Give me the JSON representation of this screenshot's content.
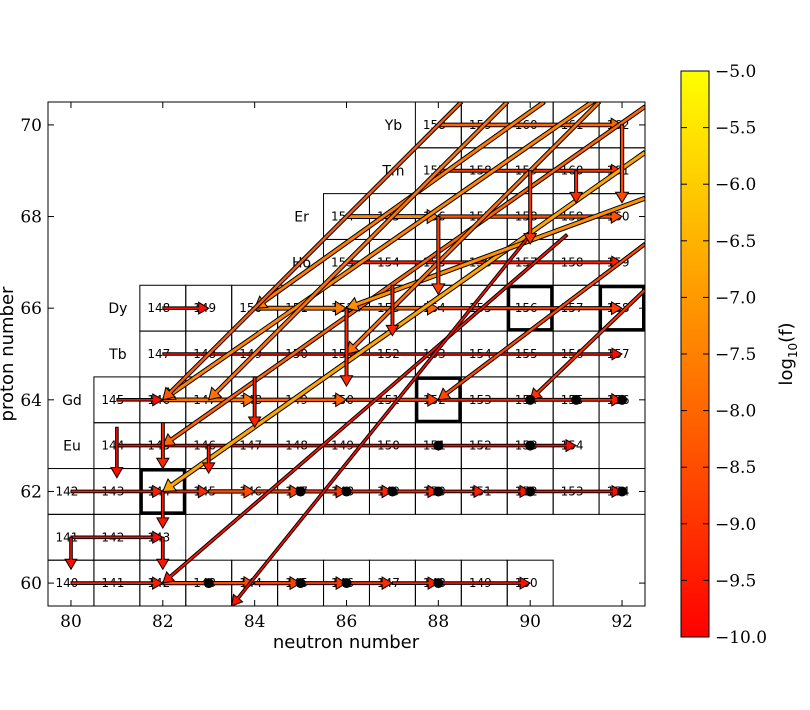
{
  "chart_data": {
    "type": "heatmap",
    "xlabel": "neutron number",
    "ylabel": "proton number",
    "xlim": [
      79.5,
      92.5
    ],
    "ylim": [
      59.5,
      70.5
    ],
    "xticks": [
      80,
      82,
      84,
      86,
      88,
      90,
      92
    ],
    "yticks": [
      60,
      62,
      64,
      66,
      68,
      70
    ],
    "elements": [
      {
        "label": "Yb",
        "z": 70
      },
      {
        "label": "Tm",
        "z": 69
      },
      {
        "label": "Er",
        "z": 68
      },
      {
        "label": "Ho",
        "z": 67
      },
      {
        "label": "Dy",
        "z": 66
      },
      {
        "label": "Tb",
        "z": 65
      },
      {
        "label": "Gd",
        "z": 64
      },
      {
        "label": "Eu",
        "z": 63
      }
    ],
    "nuclei_rows": [
      {
        "z": 70,
        "n_start": 88,
        "n_end": 92,
        "labels": [
          "158",
          "159",
          "160",
          "161",
          "162"
        ]
      },
      {
        "z": 69,
        "n_start": 88,
        "n_end": 92,
        "labels": [
          "157",
          "158",
          "159",
          "160",
          "161"
        ]
      },
      {
        "z": 68,
        "n_start": 86,
        "n_end": 92,
        "labels": [
          "154",
          "155",
          "156",
          "157",
          "158",
          "159",
          "160"
        ]
      },
      {
        "z": 67,
        "n_start": 86,
        "n_end": 92,
        "labels": [
          "153",
          "154",
          "155",
          "156",
          "157",
          "158",
          "159"
        ]
      },
      {
        "z": 66,
        "n_start": 82,
        "n_end": 92,
        "labels": [
          "148",
          "149",
          "150",
          "151",
          "152",
          "153",
          "154",
          "155",
          "156",
          "157",
          "158"
        ]
      },
      {
        "z": 65,
        "n_start": 82,
        "n_end": 92,
        "labels": [
          "147",
          "148",
          "149",
          "150",
          "151",
          "152",
          "153",
          "154",
          "155",
          "156",
          "157"
        ]
      },
      {
        "z": 64,
        "n_start": 81,
        "n_end": 92,
        "labels": [
          "145",
          "146",
          "147",
          "148",
          "149",
          "150",
          "151",
          "152",
          "153",
          "154",
          "155",
          "156"
        ]
      },
      {
        "z": 63,
        "n_start": 81,
        "n_end": 91,
        "labels": [
          "144",
          "145",
          "146",
          "147",
          "148",
          "149",
          "150",
          "151",
          "152",
          "153",
          "154"
        ]
      },
      {
        "z": 62,
        "n_start": 80,
        "n_end": 92,
        "labels": [
          "142",
          "143",
          "144",
          "145",
          "146",
          "147",
          "148",
          "149",
          "150",
          "151",
          "152",
          "153",
          "154"
        ]
      },
      {
        "z": 61,
        "n_start": 80,
        "n_end": 82,
        "labels": [
          "141",
          "142",
          "143"
        ]
      },
      {
        "z": 60,
        "n_start": 80,
        "n_end": 90,
        "labels": [
          "140",
          "141",
          "142",
          "143",
          "144",
          "145",
          "146",
          "147",
          "148",
          "149",
          "150"
        ]
      }
    ],
    "stable_nuclei": [
      {
        "n": 82,
        "z": 62
      },
      {
        "n": 88,
        "z": 64
      },
      {
        "n": 90,
        "z": 66
      },
      {
        "n": 92,
        "z": 66
      }
    ],
    "filled_markers": [
      {
        "n": 85,
        "z": 62
      },
      {
        "n": 86,
        "z": 62
      },
      {
        "n": 87,
        "z": 62
      },
      {
        "n": 88,
        "z": 62
      },
      {
        "n": 90,
        "z": 62
      },
      {
        "n": 92,
        "z": 62
      },
      {
        "n": 88,
        "z": 63
      },
      {
        "n": 90,
        "z": 63
      },
      {
        "n": 90,
        "z": 64
      },
      {
        "n": 91,
        "z": 64
      },
      {
        "n": 92,
        "z": 64
      },
      {
        "n": 83,
        "z": 60
      },
      {
        "n": 85,
        "z": 60
      },
      {
        "n": 86,
        "z": 60
      },
      {
        "n": 88,
        "z": 60
      }
    ],
    "colorbar": {
      "label": "log10(f)",
      "label_base": "log",
      "label_sub": "10",
      "label_arg": "(f)",
      "range": [
        -10.0,
        -5.0
      ],
      "ticks": [
        "−5.0",
        "−5.5",
        "−6.0",
        "−6.5",
        "−7.0",
        "−7.5",
        "−8.0",
        "−8.5",
        "−9.0",
        "−9.5",
        "−10.0"
      ],
      "tick_values": [
        -5.0,
        -5.5,
        -6.0,
        -6.5,
        -7.0,
        -7.5,
        -8.0,
        -8.5,
        -9.0,
        -9.5,
        -10.0
      ],
      "colors": [
        "#ff0000",
        "#ff8000",
        "#ffff00"
      ]
    },
    "flows": [
      {
        "from": [
          80,
          62
        ],
        "to": [
          82,
          62
        ],
        "f": -9.5
      },
      {
        "from": [
          82,
          62
        ],
        "to": [
          83,
          62
        ],
        "f": -9.2
      },
      {
        "from": [
          83,
          62
        ],
        "to": [
          84,
          62
        ],
        "f": -8.6
      },
      {
        "from": [
          84,
          62
        ],
        "to": [
          85,
          62
        ],
        "f": -8.8
      },
      {
        "from": [
          85,
          62
        ],
        "to": [
          86,
          62
        ],
        "f": -9.0
      },
      {
        "from": [
          86,
          62
        ],
        "to": [
          87,
          62
        ],
        "f": -9.2
      },
      {
        "from": [
          87,
          62
        ],
        "to": [
          88,
          62
        ],
        "f": -9.3
      },
      {
        "from": [
          88,
          62
        ],
        "to": [
          89,
          62
        ],
        "f": -9.5
      },
      {
        "from": [
          89,
          62
        ],
        "to": [
          90,
          62
        ],
        "f": -9.6
      },
      {
        "from": [
          90,
          62
        ],
        "to": [
          92,
          62
        ],
        "f": -9.8
      },
      {
        "from": [
          80,
          60
        ],
        "to": [
          82,
          60
        ],
        "f": -9.5
      },
      {
        "from": [
          82,
          60
        ],
        "to": [
          84,
          60
        ],
        "f": -8.6
      },
      {
        "from": [
          84,
          60
        ],
        "to": [
          85,
          60
        ],
        "f": -8.8
      },
      {
        "from": [
          85,
          60
        ],
        "to": [
          86,
          60
        ],
        "f": -9.0
      },
      {
        "from": [
          86,
          60
        ],
        "to": [
          87,
          60
        ],
        "f": -9.2
      },
      {
        "from": [
          87,
          60
        ],
        "to": [
          88,
          60
        ],
        "f": -9.4
      },
      {
        "from": [
          88,
          60
        ],
        "to": [
          90,
          60
        ],
        "f": -9.7
      },
      {
        "from": [
          82,
          64
        ],
        "to": [
          84,
          64
        ],
        "f": -7.8
      },
      {
        "from": [
          84,
          64
        ],
        "to": [
          86,
          64
        ],
        "f": -8.2
      },
      {
        "from": [
          86,
          64
        ],
        "to": [
          88,
          64
        ],
        "f": -8.8
      },
      {
        "from": [
          88,
          64
        ],
        "to": [
          92,
          64
        ],
        "f": -9.4
      },
      {
        "from": [
          84,
          66
        ],
        "to": [
          86,
          66
        ],
        "f": -7.6
      },
      {
        "from": [
          86,
          66
        ],
        "to": [
          88,
          66
        ],
        "f": -8.0
      },
      {
        "from": [
          88,
          66
        ],
        "to": [
          92,
          66
        ],
        "f": -8.8
      },
      {
        "from": [
          86,
          68
        ],
        "to": [
          88,
          68
        ],
        "f": -7.4
      },
      {
        "from": [
          88,
          68
        ],
        "to": [
          92,
          68
        ],
        "f": -8.4
      },
      {
        "from": [
          88,
          70
        ],
        "to": [
          92,
          70
        ],
        "f": -8.0
      },
      {
        "from": [
          86,
          67
        ],
        "to": [
          92,
          67
        ],
        "f": -9.4
      },
      {
        "from": [
          88,
          69
        ],
        "to": [
          92,
          69
        ],
        "f": -9.0
      },
      {
        "from": [
          82,
          65
        ],
        "to": [
          92,
          65
        ],
        "f": -9.8
      },
      {
        "from": [
          81,
          63
        ],
        "to": [
          91,
          63
        ],
        "f": -9.8
      },
      {
        "from": [
          82,
          66
        ],
        "to": [
          83,
          66
        ],
        "f": -9.8
      },
      {
        "from": [
          80,
          61
        ],
        "to": [
          82,
          61
        ],
        "f": -9.8
      },
      {
        "from": [
          81,
          64
        ],
        "to": [
          82,
          64
        ],
        "f": -9.8
      },
      {
        "from": [
          92.5,
          71.3
        ],
        "to": [
          82,
          64
        ],
        "f": -7.4
      },
      {
        "from": [
          92.5,
          70.4
        ],
        "to": [
          82,
          63
        ],
        "f": -8.0
      },
      {
        "from": [
          92.5,
          69.4
        ],
        "to": [
          82,
          62
        ],
        "f": -6.8
      },
      {
        "from": [
          92.5,
          68.4
        ],
        "to": [
          86,
          66
        ],
        "f": -7.2
      },
      {
        "from": [
          90.3,
          70.5
        ],
        "to": [
          84,
          66
        ],
        "f": -7.6
      },
      {
        "from": [
          89.5,
          70.5
        ],
        "to": [
          83,
          64
        ],
        "f": -7.8
      },
      {
        "from": [
          88.5,
          70.5
        ],
        "to": [
          82,
          64
        ],
        "f": -8.2
      },
      {
        "from": [
          91.5,
          70.5
        ],
        "to": [
          86,
          65
        ],
        "f": -7.8
      },
      {
        "from": [
          92.5,
          67.4
        ],
        "to": [
          88,
          64
        ],
        "f": -8.6
      },
      {
        "from": [
          90.8,
          67.6
        ],
        "to": [
          82,
          60
        ],
        "f": -9.6
      },
      {
        "from": [
          90,
          67.6
        ],
        "to": [
          83.5,
          59.5
        ],
        "f": -9.7
      },
      {
        "from": [
          92.5,
          66.4
        ],
        "to": [
          90,
          64
        ],
        "f": -9.0
      },
      {
        "from": [
          82,
          63.5
        ],
        "to": [
          82,
          62.5
        ],
        "f": -9.3
      },
      {
        "from": [
          82,
          62
        ],
        "to": [
          82,
          61.2
        ],
        "f": -9.6
      },
      {
        "from": [
          82,
          61
        ],
        "to": [
          82,
          60.3
        ],
        "f": -9.6
      },
      {
        "from": [
          80,
          61
        ],
        "to": [
          80,
          60.3
        ],
        "f": -9.8
      },
      {
        "from": [
          81,
          63.4
        ],
        "to": [
          81,
          62.3
        ],
        "f": -9.8
      },
      {
        "from": [
          88,
          68
        ],
        "to": [
          88,
          66.3
        ],
        "f": -8.8
      },
      {
        "from": [
          90,
          69
        ],
        "to": [
          90,
          67.4
        ],
        "f": -9.0
      },
      {
        "from": [
          92,
          70
        ],
        "to": [
          92,
          68.3
        ],
        "f": -8.6
      },
      {
        "from": [
          91,
          69
        ],
        "to": [
          91,
          68.3
        ],
        "f": -9.2
      },
      {
        "from": [
          86,
          66
        ],
        "to": [
          86,
          64.3
        ],
        "f": -9.2
      },
      {
        "from": [
          87,
          66.5
        ],
        "to": [
          87,
          65.4
        ],
        "f": -9.3
      },
      {
        "from": [
          84,
          64.5
        ],
        "to": [
          84,
          63.4
        ],
        "f": -9.4
      },
      {
        "from": [
          83,
          63
        ],
        "to": [
          83,
          62.4
        ],
        "f": -9.5
      }
    ]
  }
}
